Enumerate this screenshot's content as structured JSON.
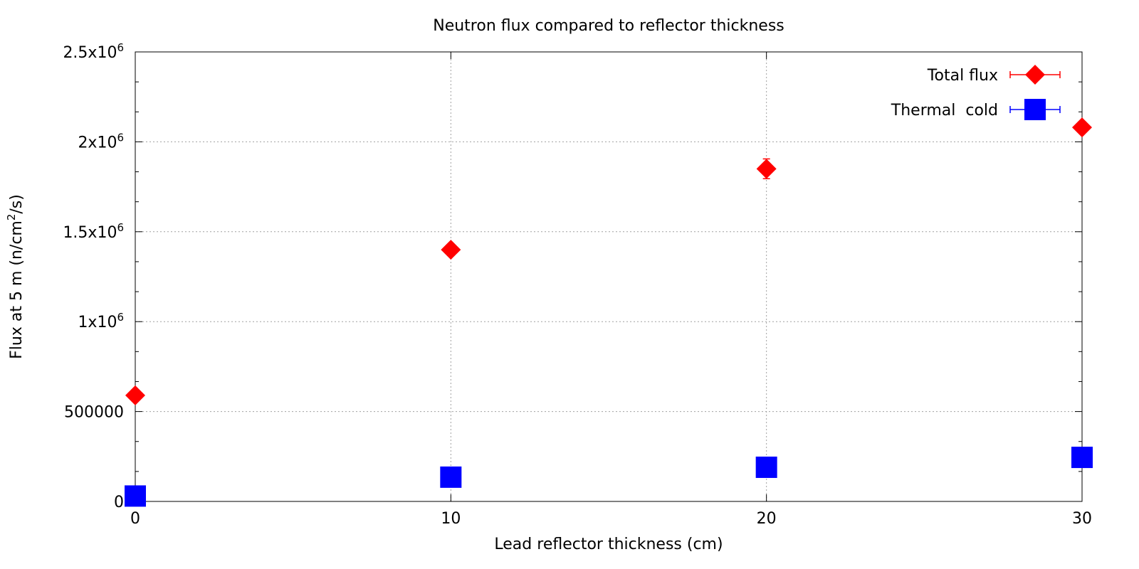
{
  "chart_data": {
    "type": "scatter",
    "title": "Neutron flux compared to reflector thickness",
    "xlabel": "Lead reflector thickness (cm)",
    "ylabel_main": "Flux at 5 m (n/cm",
    "ylabel_sup": "2",
    "ylabel_tail": "/s)",
    "xlim": [
      0,
      30
    ],
    "ylim": [
      0,
      2500000
    ],
    "grid": true,
    "legend_position": "top-right",
    "x_ticks": [
      {
        "value": 0,
        "label": "0"
      },
      {
        "value": 10,
        "label": "10"
      },
      {
        "value": 20,
        "label": "20"
      },
      {
        "value": 30,
        "label": "30"
      }
    ],
    "y_ticks": [
      {
        "value": 0,
        "base": "0",
        "exp": ""
      },
      {
        "value": 500000,
        "base": "500000",
        "exp": ""
      },
      {
        "value": 1000000,
        "base": "1x10",
        "exp": "6"
      },
      {
        "value": 1500000,
        "base": "1.5x10",
        "exp": "6"
      },
      {
        "value": 2000000,
        "base": "2x10",
        "exp": "6"
      },
      {
        "value": 2500000,
        "base": "2.5x10",
        "exp": "6"
      }
    ],
    "series": [
      {
        "name": "Total flux",
        "marker": "diamond",
        "color": "#ff0000",
        "points": [
          {
            "x": 0,
            "y": 590000,
            "err": 10000
          },
          {
            "x": 10,
            "y": 1400000,
            "err": 15000
          },
          {
            "x": 20,
            "y": 1850000,
            "err": 55000
          },
          {
            "x": 30,
            "y": 2080000,
            "err": 20000
          }
        ]
      },
      {
        "name": "Thermal  cold",
        "marker": "square",
        "color": "#0000ff",
        "points": [
          {
            "x": 0,
            "y": 30000,
            "err": 3000
          },
          {
            "x": 10,
            "y": 135000,
            "err": 5000
          },
          {
            "x": 20,
            "y": 190000,
            "err": 6000
          },
          {
            "x": 30,
            "y": 245000,
            "err": 7000
          }
        ]
      }
    ]
  }
}
